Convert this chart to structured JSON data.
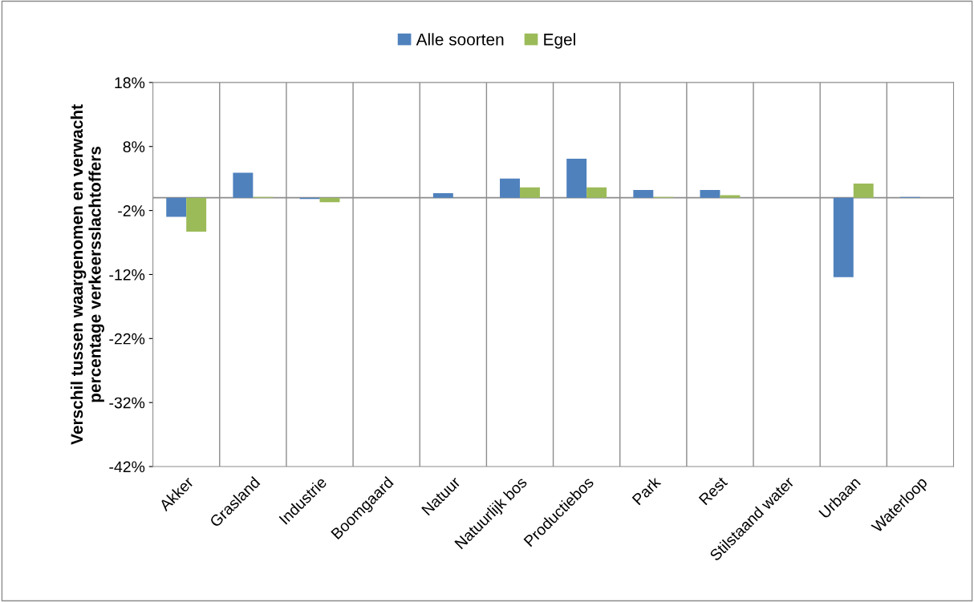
{
  "chart_data": {
    "type": "bar",
    "ylabel": "Verschil tussen waargenomen en verwacht\npercentage verkeersslachtoffers",
    "categories": [
      "Akker",
      "Grasland",
      "Industrie",
      "Boomgaard",
      "Natuur",
      "Natuurlijk bos",
      "Productiebos",
      "Park",
      "Rest",
      "Stilstaand water",
      "Urbaan",
      "Waterloop"
    ],
    "series": [
      {
        "name": "Alle soorten",
        "color": "#4f81bd",
        "values": [
          -3.0,
          3.9,
          -0.2,
          0,
          0.7,
          3.0,
          6.1,
          1.2,
          1.2,
          0,
          -12.4,
          0.1
        ]
      },
      {
        "name": "Egel",
        "color": "#9bbb59",
        "values": [
          -5.3,
          0.1,
          -0.7,
          0,
          0,
          1.6,
          1.6,
          0.1,
          0.4,
          0,
          2.2,
          0
        ]
      }
    ],
    "ylim": [
      -42,
      18
    ],
    "yticks": [
      {
        "value": 18,
        "label": "18%"
      },
      {
        "value": 8,
        "label": "8%"
      },
      {
        "value": -2,
        "label": "-2%"
      },
      {
        "value": -12,
        "label": "-12%"
      },
      {
        "value": -22,
        "label": "-22%"
      },
      {
        "value": -32,
        "label": "-32%"
      },
      {
        "value": -42,
        "label": "-42%"
      }
    ],
    "grid": "x",
    "legend": "top"
  }
}
